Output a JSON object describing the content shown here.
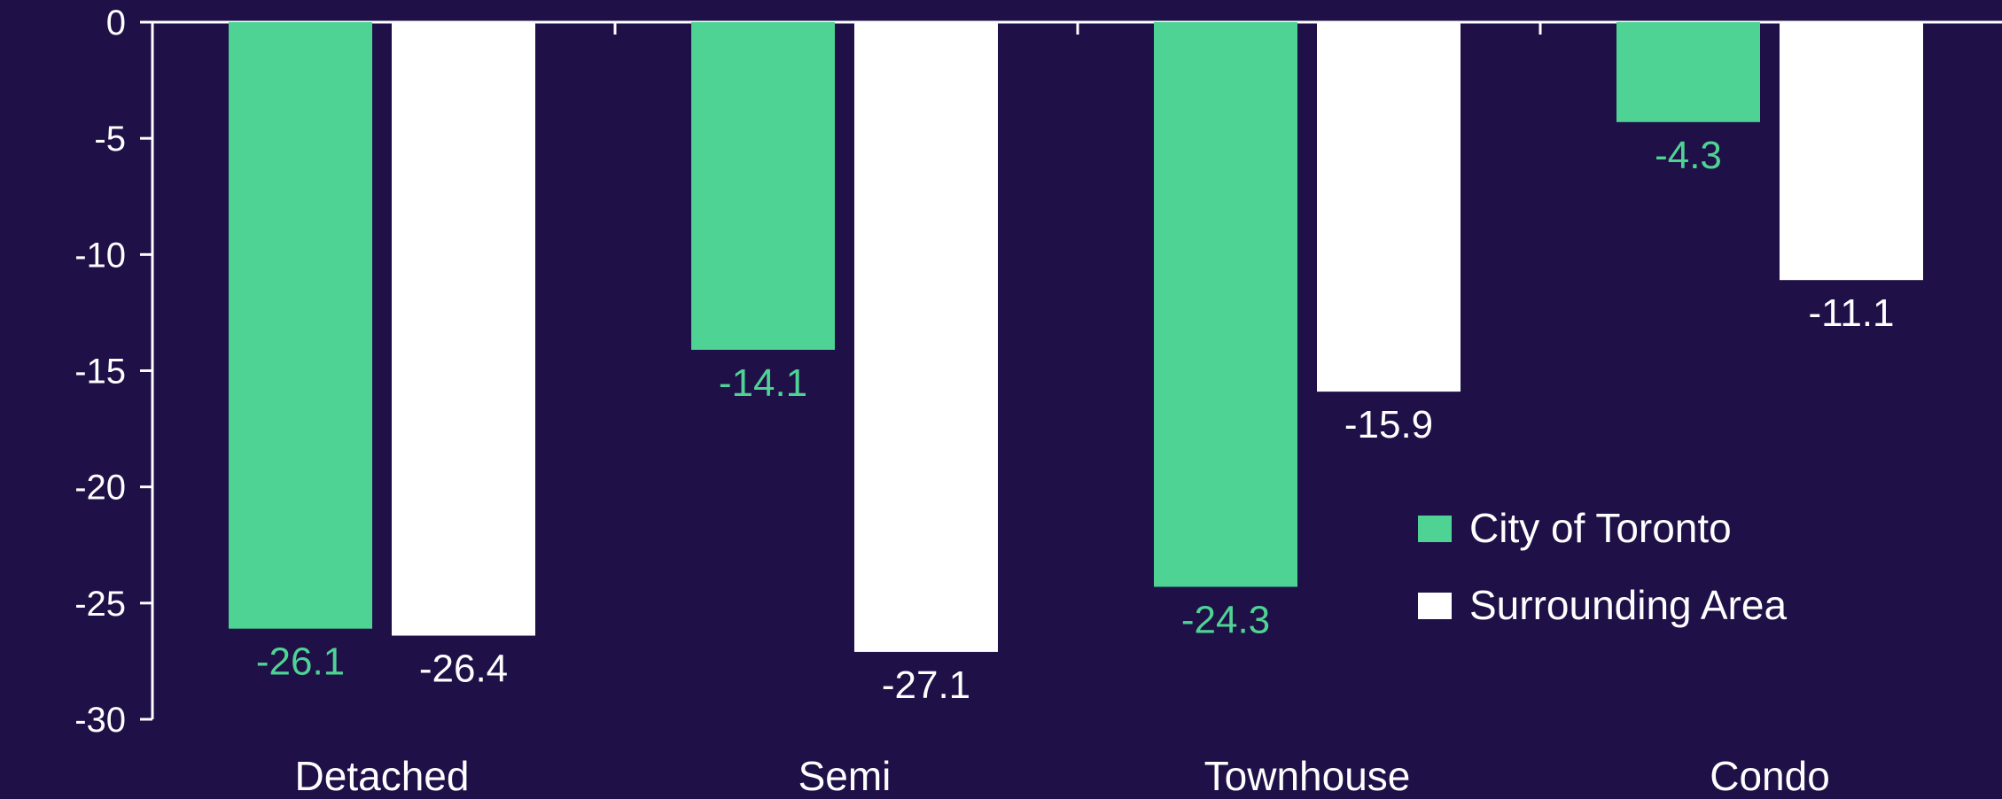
{
  "chart_data": {
    "type": "bar",
    "title": "",
    "xlabel": "",
    "ylabel": "",
    "categories": [
      "Detached",
      "Semi",
      "Townhouse",
      "Condo"
    ],
    "series": [
      {
        "name": "City of Toronto",
        "color": "#4fd394",
        "values": [
          -26.1,
          -14.1,
          -24.3,
          -4.3
        ],
        "labels": [
          "-26.1",
          "-14.1",
          "-24.3",
          "-4.3"
        ]
      },
      {
        "name": "Surrounding Area",
        "color": "#ffffff",
        "values": [
          -26.4,
          -27.1,
          -15.9,
          -11.1
        ],
        "labels": [
          "-26.4",
          "-27.1",
          "-15.9",
          "-11.1"
        ]
      }
    ],
    "y_ticks": [
      "0",
      "-5",
      "-10",
      "-15",
      "-20",
      "-25",
      "-30"
    ],
    "ylim": [
      -30,
      0
    ],
    "grid": false,
    "legend_position": "bottom-right",
    "colors": {
      "background": "#1f1048",
      "axis": "#ffffff",
      "text": "#ffffff"
    }
  }
}
